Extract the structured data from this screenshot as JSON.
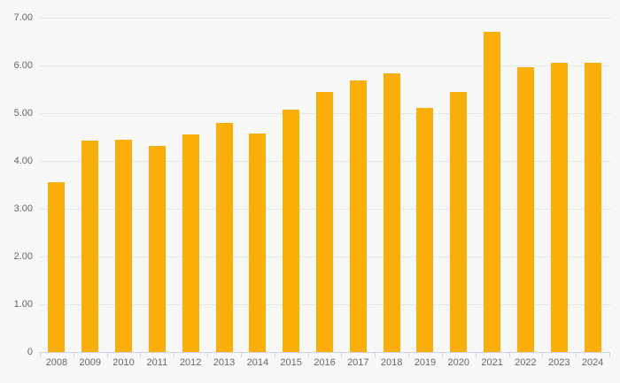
{
  "chart": {
    "background_color": "#f8f8f8",
    "bar_color": "#faaf08",
    "gridline_color": "#e6e6e6",
    "axis_line_color": "#ccd6eb",
    "tick_color": "#ccd6eb",
    "label_color": "#666666"
  },
  "chart_data": {
    "type": "bar",
    "categories": [
      "2008",
      "2009",
      "2010",
      "2011",
      "2012",
      "2013",
      "2014",
      "2015",
      "2016",
      "2017",
      "2018",
      "2019",
      "2020",
      "2021",
      "2022",
      "2023",
      "2024"
    ],
    "values": [
      3.55,
      4.42,
      4.44,
      4.32,
      4.56,
      4.79,
      4.58,
      5.07,
      5.45,
      5.69,
      5.83,
      5.12,
      5.45,
      6.7,
      5.97,
      6.05,
      6.05
    ],
    "ylim": [
      0,
      7
    ],
    "yticks": [
      {
        "value": 0,
        "label": "0"
      },
      {
        "value": 1,
        "label": "1.00"
      },
      {
        "value": 2,
        "label": "2.00"
      },
      {
        "value": 3,
        "label": "3.00"
      },
      {
        "value": 4,
        "label": "4.00"
      },
      {
        "value": 5,
        "label": "5.00"
      },
      {
        "value": 6,
        "label": "6.00"
      },
      {
        "value": 7,
        "label": "7.00"
      }
    ],
    "grid": true,
    "legend": false
  }
}
